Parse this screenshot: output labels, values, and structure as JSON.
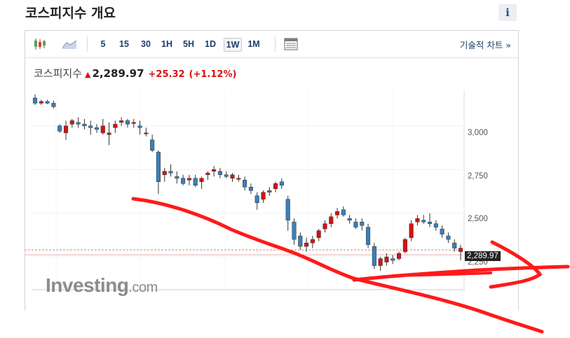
{
  "page": {
    "title": "코스피지수 개요",
    "info_icon": "i"
  },
  "toolbar": {
    "candlestick_icon": "candlestick-chart-icon",
    "area_icon": "area-chart-icon",
    "intervals": [
      "5",
      "15",
      "30",
      "1H",
      "5H",
      "1D",
      "1W",
      "1M"
    ],
    "active_interval": "1W",
    "table_icon": "table-icon",
    "technical_chart_label": "기술적 차트 »"
  },
  "quote": {
    "name": "코스피지수",
    "price": "2,289.97",
    "change": "+25.32",
    "change_pct": "(+1.12%)",
    "colors": {
      "up": "#d81010",
      "down": "#3a7fb8"
    }
  },
  "logo": {
    "main": "Investing",
    "suffix": ".com"
  },
  "price_tag": "2,289.97",
  "chart_data": {
    "type": "candlestick",
    "yticks": [
      "3,000",
      "2,750",
      "2,500",
      "2,250"
    ],
    "ytick_values": [
      3000,
      2750,
      2500,
      2250
    ],
    "ylim": [
      2070,
      3200
    ],
    "last_price": 2289.97,
    "candles": [
      [
        3160,
        3180,
        3120,
        3130
      ],
      [
        3130,
        3150,
        3120,
        3140
      ],
      [
        3140,
        3150,
        3125,
        3130
      ],
      [
        3130,
        3145,
        3100,
        3110
      ],
      [
        3000,
        3010,
        2960,
        2970
      ],
      [
        2960,
        3030,
        2920,
        3000
      ],
      [
        3010,
        3040,
        2990,
        3030
      ],
      [
        3020,
        3050,
        2990,
        3010
      ],
      [
        3010,
        3040,
        2980,
        3000
      ],
      [
        3000,
        3030,
        2950,
        2990
      ],
      [
        2990,
        3010,
        2960,
        2980
      ],
      [
        2960,
        3040,
        2950,
        3000
      ],
      [
        2950,
        3020,
        2890,
        2960
      ],
      [
        2990,
        3030,
        2960,
        3010
      ],
      [
        3020,
        3050,
        3000,
        3030
      ],
      [
        3030,
        3040,
        2990,
        3010
      ],
      [
        3020,
        3040,
        2990,
        3020
      ],
      [
        3000,
        3030,
        2950,
        2990
      ],
      [
        2960,
        2990,
        2940,
        2960
      ],
      [
        2920,
        2950,
        2850,
        2860
      ],
      [
        2850,
        2860,
        2610,
        2680
      ],
      [
        2720,
        2760,
        2680,
        2740
      ],
      [
        2740,
        2780,
        2710,
        2730
      ],
      [
        2710,
        2740,
        2670,
        2700
      ],
      [
        2700,
        2720,
        2660,
        2670
      ],
      [
        2690,
        2720,
        2660,
        2700
      ],
      [
        2700,
        2720,
        2650,
        2660
      ],
      [
        2680,
        2710,
        2640,
        2700
      ],
      [
        2720,
        2740,
        2690,
        2730
      ],
      [
        2740,
        2770,
        2710,
        2750
      ],
      [
        2740,
        2760,
        2700,
        2720
      ],
      [
        2720,
        2740,
        2700,
        2710
      ],
      [
        2700,
        2730,
        2680,
        2720
      ],
      [
        2700,
        2720,
        2680,
        2700
      ],
      [
        2690,
        2710,
        2630,
        2650
      ],
      [
        2650,
        2670,
        2610,
        2630
      ],
      [
        2600,
        2620,
        2520,
        2560
      ],
      [
        2580,
        2630,
        2560,
        2620
      ],
      [
        2630,
        2650,
        2600,
        2620
      ],
      [
        2640,
        2680,
        2620,
        2670
      ],
      [
        2680,
        2700,
        2640,
        2660
      ],
      [
        2580,
        2600,
        2400,
        2460
      ],
      [
        2450,
        2470,
        2320,
        2350
      ],
      [
        2370,
        2390,
        2290,
        2310
      ],
      [
        2310,
        2360,
        2280,
        2330
      ],
      [
        2330,
        2370,
        2300,
        2350
      ],
      [
        2360,
        2410,
        2340,
        2400
      ],
      [
        2410,
        2460,
        2390,
        2440
      ],
      [
        2440,
        2500,
        2420,
        2480
      ],
      [
        2490,
        2530,
        2470,
        2510
      ],
      [
        2520,
        2540,
        2480,
        2490
      ],
      [
        2470,
        2490,
        2440,
        2460
      ],
      [
        2450,
        2470,
        2410,
        2420
      ],
      [
        2450,
        2470,
        2400,
        2430
      ],
      [
        2420,
        2440,
        2300,
        2320
      ],
      [
        2310,
        2330,
        2180,
        2200
      ],
      [
        2200,
        2250,
        2170,
        2240
      ],
      [
        2220,
        2270,
        2200,
        2250
      ],
      [
        2240,
        2260,
        2210,
        2230
      ],
      [
        2240,
        2280,
        2230,
        2270
      ],
      [
        2280,
        2360,
        2270,
        2350
      ],
      [
        2360,
        2460,
        2340,
        2440
      ],
      [
        2450,
        2490,
        2430,
        2470
      ],
      [
        2460,
        2490,
        2440,
        2450
      ],
      [
        2450,
        2500,
        2420,
        2440
      ],
      [
        2440,
        2460,
        2400,
        2420
      ],
      [
        2410,
        2430,
        2360,
        2380
      ],
      [
        2370,
        2390,
        2330,
        2350
      ],
      [
        2330,
        2350,
        2280,
        2300
      ],
      [
        2280,
        2320,
        2230,
        2300
      ]
    ]
  }
}
